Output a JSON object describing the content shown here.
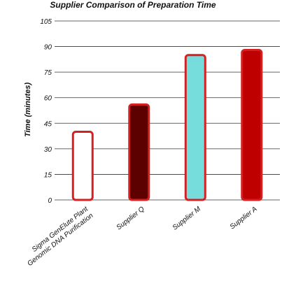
{
  "chart_data": {
    "type": "bar",
    "title": "Supplier Comparison of Preparation Time",
    "ylabel": "Time (minutes)",
    "xlabel": "",
    "ylim": [
      0,
      105
    ],
    "yticks": [
      0,
      15,
      30,
      45,
      60,
      75,
      90,
      105
    ],
    "grid": true,
    "categories": [
      [
        "Sigma GenElute Plant",
        "Genomic DNA Purification"
      ],
      [
        "Supplier Q"
      ],
      [
        "Supplier M"
      ],
      [
        "Supplier A"
      ]
    ],
    "values": [
      40,
      56,
      85,
      88
    ],
    "colors": [
      "#ffffff",
      "#5c0000",
      "#76dcdc",
      "#bf0000"
    ],
    "edge_color": "#d42020"
  }
}
